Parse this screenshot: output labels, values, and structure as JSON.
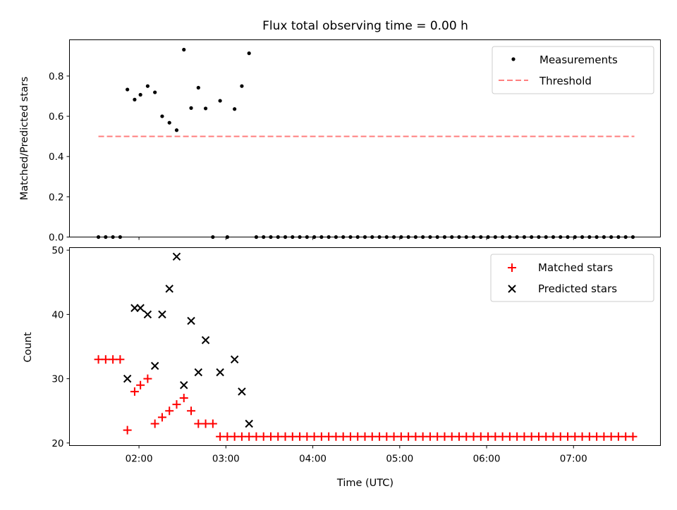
{
  "chart_data": [
    {
      "type": "scatter",
      "title": "Flux total observing time = 0.00 h",
      "xlabel": "",
      "ylabel": "Matched/Predicted stars",
      "xlim": [
        "01:12",
        "08:00"
      ],
      "ylim": [
        0,
        0.98
      ],
      "yticks": [
        "0.0",
        "0.2",
        "0.4",
        "0.6",
        "0.8"
      ],
      "legend_position": "top-right",
      "series": [
        {
          "name": "Measurements",
          "style": "dot",
          "color": "#000000",
          "points": [
            [
              "01:32",
              0.0
            ],
            [
              "01:37",
              0.0
            ],
            [
              "01:42",
              0.0
            ],
            [
              "01:47",
              0.0
            ],
            [
              "01:52",
              0.733
            ],
            [
              "01:57",
              0.683
            ],
            [
              "02:01",
              0.707
            ],
            [
              "02:06",
              0.75
            ],
            [
              "02:11",
              0.719
            ],
            [
              "02:16",
              0.6
            ],
            [
              "02:21",
              0.568
            ],
            [
              "02:26",
              0.531
            ],
            [
              "02:31",
              0.931
            ],
            [
              "02:36",
              0.641
            ],
            [
              "02:41",
              0.742
            ],
            [
              "02:46",
              0.639
            ],
            [
              "02:51",
              0.0
            ],
            [
              "02:56",
              0.677
            ],
            [
              "03:01",
              0.0
            ],
            [
              "03:06",
              0.636
            ],
            [
              "03:11",
              0.75
            ],
            [
              "03:16",
              0.913
            ],
            [
              "03:21",
              0.0
            ],
            [
              "03:26",
              0.0
            ],
            [
              "03:31",
              0.0
            ],
            [
              "03:36",
              0.0
            ],
            [
              "03:41",
              0.0
            ],
            [
              "03:46",
              0.0
            ],
            [
              "03:51",
              0.0
            ],
            [
              "03:56",
              0.0
            ],
            [
              "04:01",
              0.0
            ],
            [
              "04:06",
              0.0
            ],
            [
              "04:11",
              0.0
            ],
            [
              "04:16",
              0.0
            ],
            [
              "04:21",
              0.0
            ],
            [
              "04:26",
              0.0
            ],
            [
              "04:31",
              0.0
            ],
            [
              "04:36",
              0.0
            ],
            [
              "04:41",
              0.0
            ],
            [
              "04:46",
              0.0
            ],
            [
              "04:51",
              0.0
            ],
            [
              "04:56",
              0.0
            ],
            [
              "05:01",
              0.0
            ],
            [
              "05:06",
              0.0
            ],
            [
              "05:11",
              0.0
            ],
            [
              "05:16",
              0.0
            ],
            [
              "05:21",
              0.0
            ],
            [
              "05:26",
              0.0
            ],
            [
              "05:31",
              0.0
            ],
            [
              "05:36",
              0.0
            ],
            [
              "05:41",
              0.0
            ],
            [
              "05:46",
              0.0
            ],
            [
              "05:51",
              0.0
            ],
            [
              "05:56",
              0.0
            ],
            [
              "06:01",
              0.0
            ],
            [
              "06:06",
              0.0
            ],
            [
              "06:11",
              0.0
            ],
            [
              "06:16",
              0.0
            ],
            [
              "06:21",
              0.0
            ],
            [
              "06:26",
              0.0
            ],
            [
              "06:31",
              0.0
            ],
            [
              "06:36",
              0.0
            ],
            [
              "06:41",
              0.0
            ],
            [
              "06:46",
              0.0
            ],
            [
              "06:51",
              0.0
            ],
            [
              "06:56",
              0.0
            ],
            [
              "07:01",
              0.0
            ],
            [
              "07:06",
              0.0
            ],
            [
              "07:11",
              0.0
            ],
            [
              "07:16",
              0.0
            ],
            [
              "07:21",
              0.0
            ],
            [
              "07:26",
              0.0
            ],
            [
              "07:31",
              0.0
            ],
            [
              "07:36",
              0.0
            ],
            [
              "07:41",
              0.0
            ]
          ]
        },
        {
          "name": "Threshold",
          "style": "dashed-line",
          "color": "#ff7f7f",
          "points": [
            [
              "01:32",
              0.5
            ],
            [
              "07:42",
              0.5
            ]
          ]
        }
      ]
    },
    {
      "type": "scatter",
      "title": "",
      "xlabel": "Time (UTC)",
      "ylabel": "Count",
      "xlim": [
        "01:12",
        "08:00"
      ],
      "ylim": [
        19.6,
        50.4
      ],
      "xticks": [
        "02:00",
        "03:00",
        "04:00",
        "05:00",
        "06:00",
        "07:00"
      ],
      "yticks": [
        "20",
        "30",
        "40",
        "50"
      ],
      "legend_position": "top-right",
      "series": [
        {
          "name": "Matched stars",
          "marker": "plus",
          "color": "#ff0000",
          "points": [
            [
              "01:32",
              33
            ],
            [
              "01:37",
              33
            ],
            [
              "01:42",
              33
            ],
            [
              "01:47",
              33
            ],
            [
              "01:52",
              22
            ],
            [
              "01:57",
              28
            ],
            [
              "02:01",
              29
            ],
            [
              "02:06",
              30
            ],
            [
              "02:11",
              23
            ],
            [
              "02:16",
              24
            ],
            [
              "02:21",
              25
            ],
            [
              "02:26",
              26
            ],
            [
              "02:31",
              27
            ],
            [
              "02:36",
              25
            ],
            [
              "02:41",
              23
            ],
            [
              "02:46",
              23
            ],
            [
              "02:51",
              23
            ],
            [
              "02:56",
              21
            ],
            [
              "03:01",
              21
            ],
            [
              "03:06",
              21
            ],
            [
              "03:11",
              21
            ],
            [
              "03:16",
              21
            ],
            [
              "03:21",
              21
            ],
            [
              "03:26",
              21
            ],
            [
              "03:31",
              21
            ],
            [
              "03:36",
              21
            ],
            [
              "03:41",
              21
            ],
            [
              "03:46",
              21
            ],
            [
              "03:51",
              21
            ],
            [
              "03:56",
              21
            ],
            [
              "04:01",
              21
            ],
            [
              "04:06",
              21
            ],
            [
              "04:11",
              21
            ],
            [
              "04:16",
              21
            ],
            [
              "04:21",
              21
            ],
            [
              "04:26",
              21
            ],
            [
              "04:31",
              21
            ],
            [
              "04:36",
              21
            ],
            [
              "04:41",
              21
            ],
            [
              "04:46",
              21
            ],
            [
              "04:51",
              21
            ],
            [
              "04:56",
              21
            ],
            [
              "05:01",
              21
            ],
            [
              "05:06",
              21
            ],
            [
              "05:11",
              21
            ],
            [
              "05:16",
              21
            ],
            [
              "05:21",
              21
            ],
            [
              "05:26",
              21
            ],
            [
              "05:31",
              21
            ],
            [
              "05:36",
              21
            ],
            [
              "05:41",
              21
            ],
            [
              "05:46",
              21
            ],
            [
              "05:51",
              21
            ],
            [
              "05:56",
              21
            ],
            [
              "06:01",
              21
            ],
            [
              "06:06",
              21
            ],
            [
              "06:11",
              21
            ],
            [
              "06:16",
              21
            ],
            [
              "06:21",
              21
            ],
            [
              "06:26",
              21
            ],
            [
              "06:31",
              21
            ],
            [
              "06:36",
              21
            ],
            [
              "06:41",
              21
            ],
            [
              "06:46",
              21
            ],
            [
              "06:51",
              21
            ],
            [
              "06:56",
              21
            ],
            [
              "07:01",
              21
            ],
            [
              "07:06",
              21
            ],
            [
              "07:11",
              21
            ],
            [
              "07:16",
              21
            ],
            [
              "07:21",
              21
            ],
            [
              "07:26",
              21
            ],
            [
              "07:31",
              21
            ],
            [
              "07:36",
              21
            ],
            [
              "07:41",
              21
            ]
          ]
        },
        {
          "name": "Predicted stars",
          "marker": "x",
          "color": "#000000",
          "points": [
            [
              "01:52",
              30
            ],
            [
              "01:57",
              41
            ],
            [
              "02:01",
              41
            ],
            [
              "02:06",
              40
            ],
            [
              "02:11",
              32
            ],
            [
              "02:16",
              40
            ],
            [
              "02:21",
              44
            ],
            [
              "02:26",
              49
            ],
            [
              "02:31",
              29
            ],
            [
              "02:36",
              39
            ],
            [
              "02:41",
              31
            ],
            [
              "02:46",
              36
            ],
            [
              "02:56",
              31
            ],
            [
              "03:06",
              33
            ],
            [
              "03:11",
              28
            ],
            [
              "03:16",
              23
            ]
          ]
        }
      ]
    }
  ]
}
